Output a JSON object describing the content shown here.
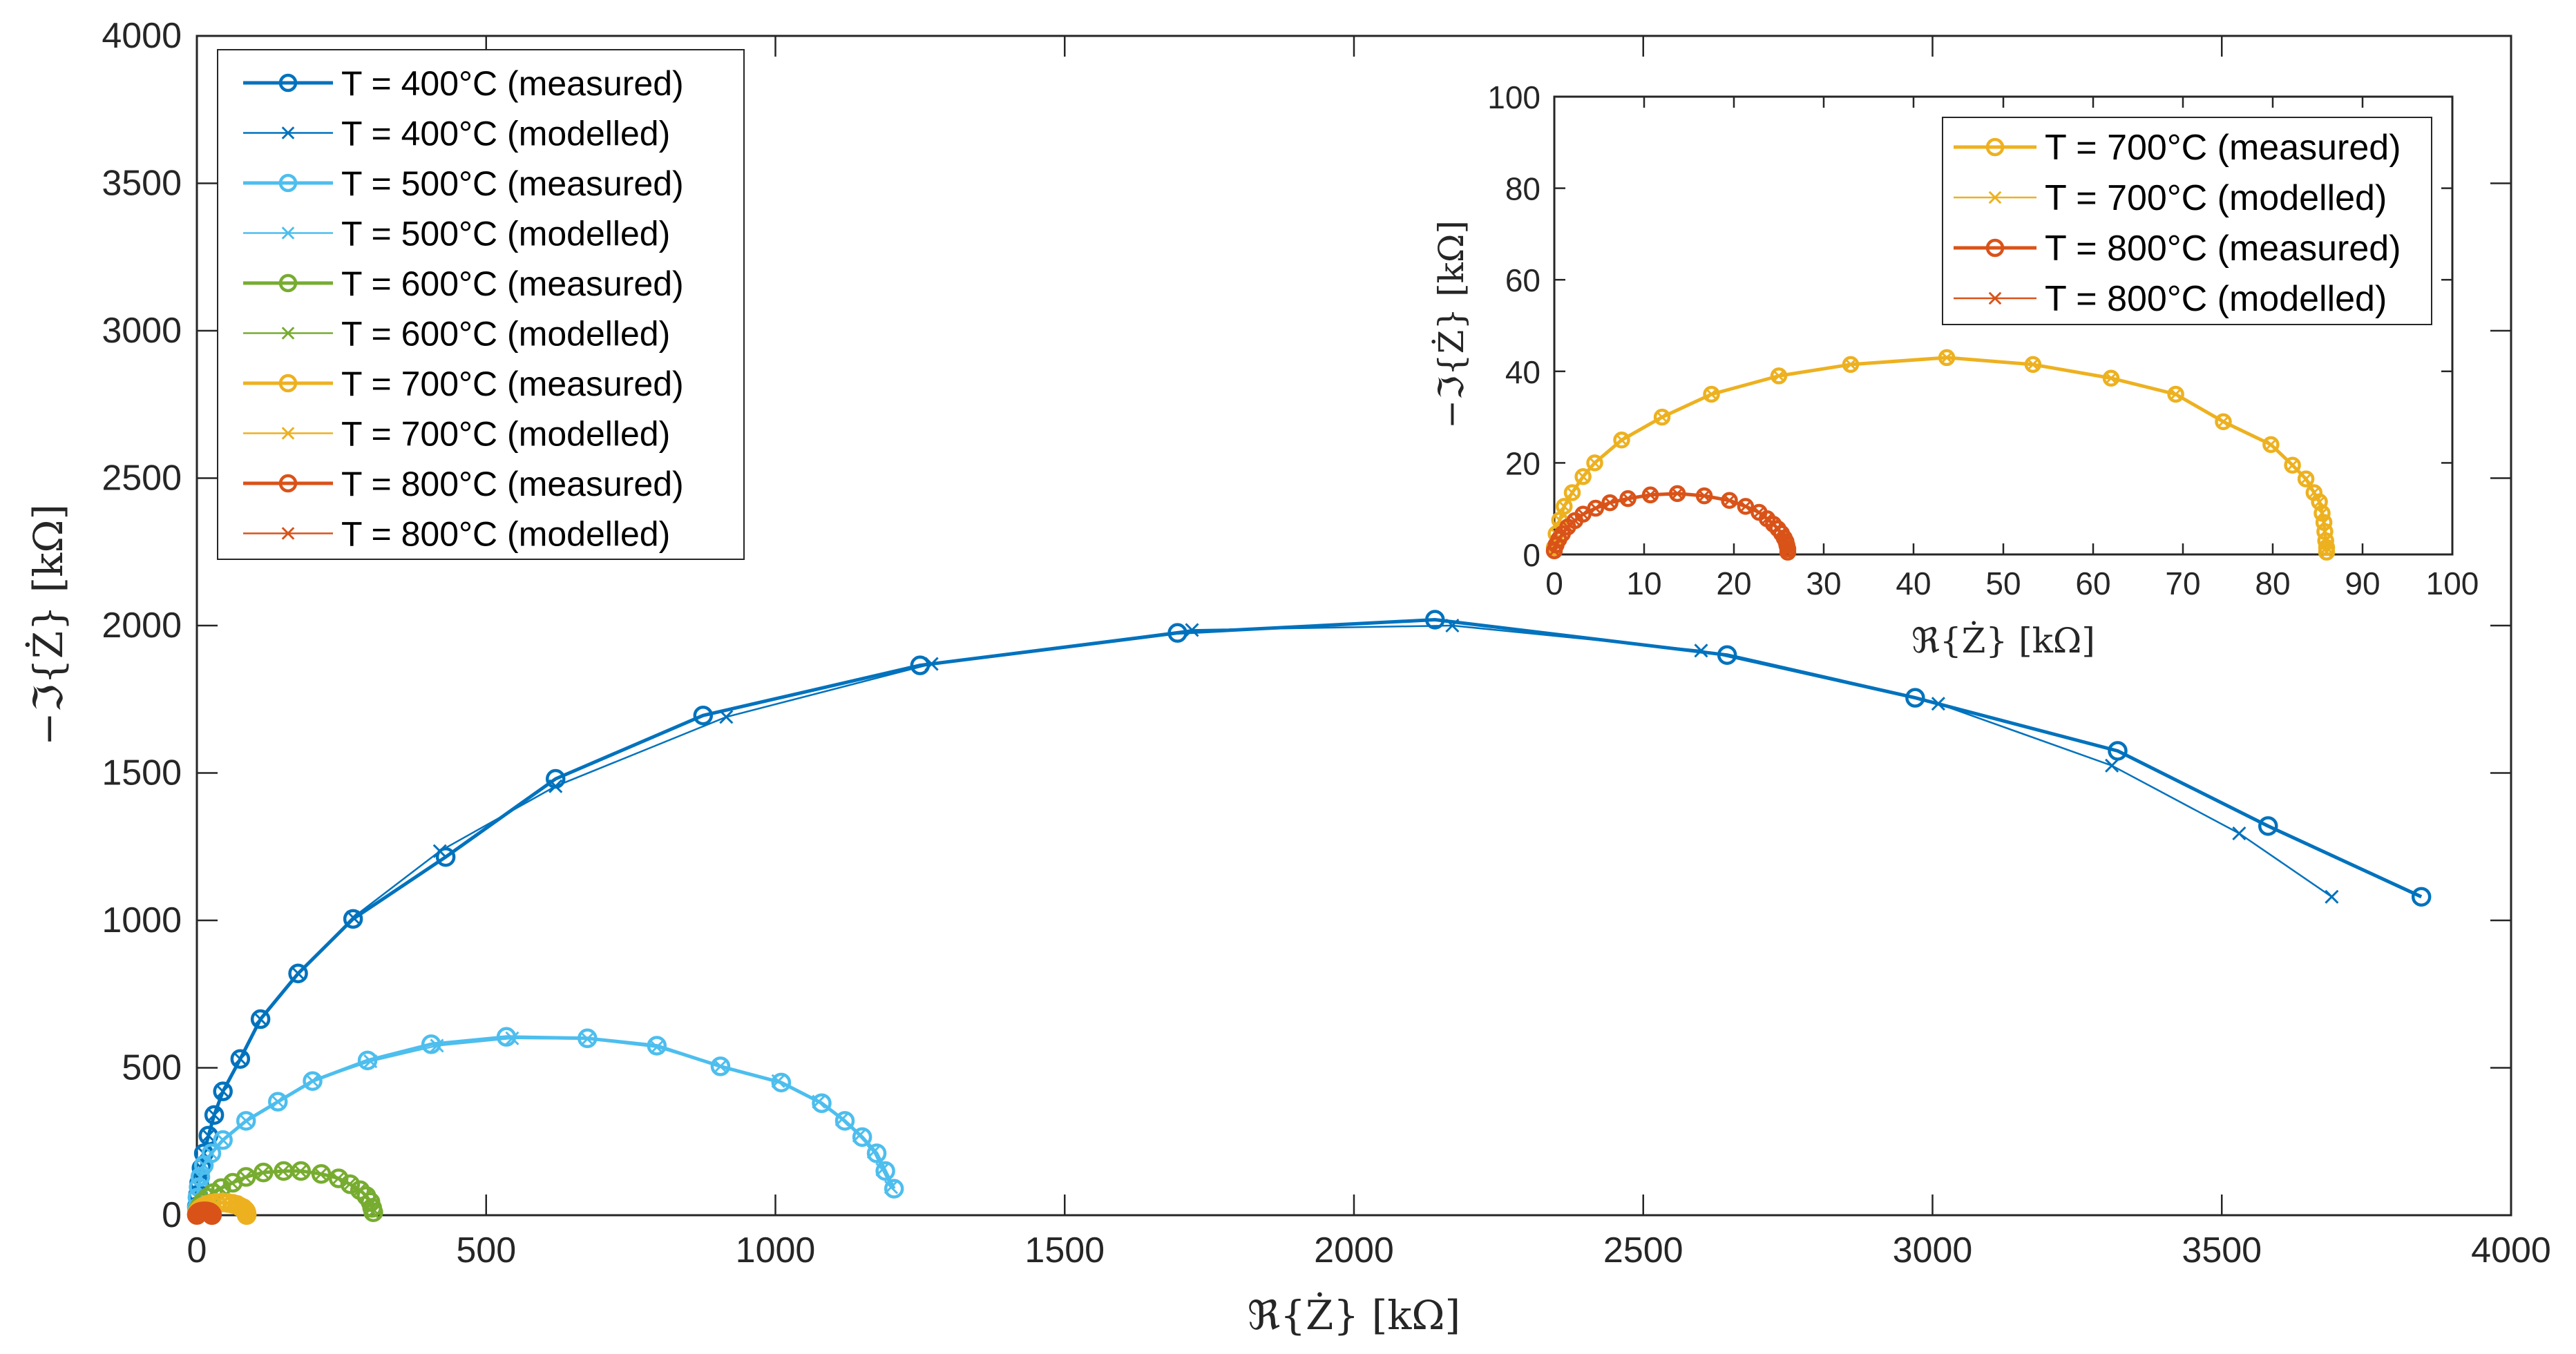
{
  "chart_data": [
    {
      "type": "line",
      "title": "",
      "xlabel": "ℜ{Ż} [kΩ]",
      "ylabel": "−ℑ{Ż} [kΩ]",
      "xlim": [
        0,
        4000
      ],
      "ylim": [
        0,
        4000
      ],
      "x_ticks": [
        "0",
        "500",
        "1000",
        "1500",
        "2000",
        "2500",
        "3000",
        "3500",
        "4000"
      ],
      "y_ticks": [
        "0",
        "500",
        "1000",
        "1500",
        "2000",
        "2500",
        "3000",
        "3500",
        "4000"
      ],
      "legend_position": "top-left",
      "series": [
        {
          "name": "T = 400°C (measured)",
          "color": "#0072BD",
          "marker": "circle",
          "style": "thick",
          "points": [
            [
              3845,
              1080
            ],
            [
              3580,
              1320
            ],
            [
              3320,
              1575
            ],
            [
              2970,
              1755
            ],
            [
              2645,
              1900
            ],
            [
              2140,
              2020
            ],
            [
              1695,
              1975
            ],
            [
              1250,
              1865
            ],
            [
              875,
              1695
            ],
            [
              620,
              1480
            ],
            [
              430,
              1215
            ],
            [
              270,
              1005
            ],
            [
              175,
              820
            ],
            [
              110,
              665
            ],
            [
              75,
              530
            ],
            [
              45,
              420
            ],
            [
              30,
              340
            ],
            [
              20,
              270
            ],
            [
              12,
              210
            ],
            [
              8,
              160
            ],
            [
              4,
              110
            ],
            [
              2,
              70
            ],
            [
              0,
              30
            ]
          ]
        },
        {
          "name": "T = 400°C (modelled)",
          "color": "#0072BD",
          "marker": "x",
          "style": "thin",
          "points": [
            [
              3690,
              1080
            ],
            [
              3530,
              1295
            ],
            [
              3310,
              1525
            ],
            [
              3010,
              1735
            ],
            [
              2600,
              1915
            ],
            [
              2170,
              2000
            ],
            [
              1720,
              1985
            ],
            [
              1270,
              1870
            ],
            [
              915,
              1690
            ],
            [
              620,
              1455
            ],
            [
              420,
              1235
            ],
            [
              270,
              1010
            ],
            [
              175,
              820
            ],
            [
              110,
              665
            ],
            [
              75,
              530
            ],
            [
              45,
              420
            ],
            [
              30,
              340
            ],
            [
              20,
              270
            ],
            [
              12,
              210
            ],
            [
              8,
              160
            ],
            [
              4,
              110
            ],
            [
              2,
              70
            ],
            [
              0,
              30
            ]
          ]
        },
        {
          "name": "T = 500°C (measured)",
          "color": "#4DBEEE",
          "marker": "circle",
          "style": "thick",
          "points": [
            [
              1205,
              90
            ],
            [
              1190,
              150
            ],
            [
              1175,
              210
            ],
            [
              1150,
              265
            ],
            [
              1120,
              320
            ],
            [
              1080,
              380
            ],
            [
              1010,
              450
            ],
            [
              905,
              505
            ],
            [
              795,
              575
            ],
            [
              675,
              600
            ],
            [
              535,
              605
            ],
            [
              405,
              580
            ],
            [
              295,
              525
            ],
            [
              200,
              455
            ],
            [
              140,
              385
            ],
            [
              85,
              320
            ],
            [
              45,
              255
            ],
            [
              25,
              210
            ],
            [
              12,
              170
            ],
            [
              6,
              130
            ],
            [
              3,
              95
            ],
            [
              1,
              60
            ],
            [
              0,
              25
            ]
          ]
        },
        {
          "name": "T = 500°C (modelled)",
          "color": "#4DBEEE",
          "marker": "x",
          "style": "thin",
          "points": [
            [
              1200,
              95
            ],
            [
              1185,
              155
            ],
            [
              1170,
              215
            ],
            [
              1145,
              270
            ],
            [
              1115,
              325
            ],
            [
              1075,
              385
            ],
            [
              1005,
              455
            ],
            [
              905,
              505
            ],
            [
              795,
              570
            ],
            [
              675,
              598
            ],
            [
              545,
              600
            ],
            [
              415,
              575
            ],
            [
              300,
              522
            ],
            [
              200,
              455
            ],
            [
              140,
              385
            ],
            [
              85,
              320
            ],
            [
              45,
              255
            ],
            [
              25,
              210
            ],
            [
              12,
              170
            ],
            [
              6,
              130
            ],
            [
              3,
              95
            ],
            [
              1,
              60
            ],
            [
              0,
              25
            ]
          ]
        },
        {
          "name": "T = 600°C (measured)",
          "color": "#77AC30",
          "marker": "circle",
          "style": "thick",
          "points": [
            [
              305,
              10
            ],
            [
              303,
              25
            ],
            [
              300,
              45
            ],
            [
              293,
              65
            ],
            [
              282,
              85
            ],
            [
              265,
              105
            ],
            [
              245,
              125
            ],
            [
              215,
              140
            ],
            [
              180,
              150
            ],
            [
              150,
              150
            ],
            [
              115,
              145
            ],
            [
              85,
              130
            ],
            [
              62,
              110
            ],
            [
              42,
              92
            ],
            [
              28,
              75
            ],
            [
              18,
              60
            ],
            [
              10,
              45
            ],
            [
              5,
              30
            ],
            [
              2,
              18
            ],
            [
              0,
              5
            ]
          ]
        },
        {
          "name": "T = 600°C (modelled)",
          "color": "#77AC30",
          "marker": "x",
          "style": "thin",
          "points": [
            [
              304,
              10
            ],
            [
              302,
              25
            ],
            [
              299,
              45
            ],
            [
              292,
              65
            ],
            [
              281,
              85
            ],
            [
              264,
              105
            ],
            [
              244,
              124
            ],
            [
              214,
              139
            ],
            [
              179,
              149
            ],
            [
              149,
              149
            ],
            [
              114,
              144
            ],
            [
              84,
              129
            ],
            [
              61,
              109
            ],
            [
              41,
              91
            ],
            [
              27,
              74
            ],
            [
              17,
              59
            ],
            [
              9,
              44
            ],
            [
              4,
              29
            ],
            [
              1,
              17
            ],
            [
              0,
              5
            ]
          ]
        },
        {
          "name": "T = 700°C (measured)",
          "color": "#EDB120",
          "marker": "circle",
          "style": "thick",
          "points": [
            [
              86.0,
              0.5
            ],
            [
              86.0,
              1.5
            ],
            [
              85.9,
              3
            ],
            [
              85.8,
              5
            ],
            [
              85.7,
              7
            ],
            [
              85.5,
              9
            ],
            [
              85.2,
              11.5
            ],
            [
              84.6,
              13.5
            ],
            [
              83.7,
              16.5
            ],
            [
              82.2,
              19.5
            ],
            [
              79.8,
              24
            ],
            [
              74.5,
              29
            ],
            [
              69.2,
              35
            ],
            [
              62.0,
              38.5
            ],
            [
              53.3,
              41.5
            ],
            [
              43.7,
              43
            ],
            [
              33.0,
              41.5
            ],
            [
              25.0,
              39
            ],
            [
              17.5,
              35
            ],
            [
              12.0,
              30
            ],
            [
              7.5,
              25
            ],
            [
              4.5,
              20
            ],
            [
              3.2,
              17
            ],
            [
              2.0,
              13.5
            ],
            [
              1.1,
              10.5
            ],
            [
              0.6,
              7.5
            ],
            [
              0.2,
              4.5
            ],
            [
              0,
              1.5
            ]
          ]
        },
        {
          "name": "T = 700°C (modelled)",
          "color": "#EDB120",
          "marker": "x",
          "style": "thin",
          "points": [
            [
              86.0,
              0.5
            ],
            [
              86.0,
              1.5
            ],
            [
              85.9,
              3
            ],
            [
              85.8,
              5
            ],
            [
              85.7,
              7
            ],
            [
              85.5,
              9
            ],
            [
              85.2,
              11.5
            ],
            [
              84.6,
              13.5
            ],
            [
              83.7,
              16.5
            ],
            [
              82.2,
              19.5
            ],
            [
              79.8,
              24
            ],
            [
              74.5,
              29
            ],
            [
              69.2,
              35
            ],
            [
              62.0,
              38.5
            ],
            [
              53.3,
              41.5
            ],
            [
              43.7,
              43
            ],
            [
              33.0,
              41.5
            ],
            [
              25.0,
              39
            ],
            [
              17.5,
              35
            ],
            [
              12.0,
              30
            ],
            [
              7.5,
              25
            ],
            [
              4.5,
              20
            ],
            [
              3.2,
              17
            ],
            [
              2.0,
              13.5
            ],
            [
              1.1,
              10.5
            ],
            [
              0.6,
              7.5
            ],
            [
              0.2,
              4.5
            ],
            [
              0,
              1.5
            ]
          ]
        },
        {
          "name": "T = 800°C (measured)",
          "color": "#D95319",
          "marker": "circle",
          "style": "thick",
          "points": [
            [
              26.0,
              0.5
            ],
            [
              26.0,
              1.2
            ],
            [
              25.9,
              2
            ],
            [
              25.8,
              2.8
            ],
            [
              25.6,
              3.6
            ],
            [
              25.3,
              4.6
            ],
            [
              24.9,
              5.6
            ],
            [
              24.4,
              6.6
            ],
            [
              23.7,
              7.8
            ],
            [
              22.8,
              9.2
            ],
            [
              21.3,
              10.5
            ],
            [
              19.5,
              11.8
            ],
            [
              16.7,
              12.8
            ],
            [
              13.7,
              13.3
            ],
            [
              10.7,
              13
            ],
            [
              8.2,
              12.2
            ],
            [
              6.2,
              11.3
            ],
            [
              4.6,
              10.1
            ],
            [
              3.2,
              8.8
            ],
            [
              2.3,
              7.4
            ],
            [
              1.5,
              6
            ],
            [
              0.9,
              4.5
            ],
            [
              0.5,
              3.3
            ],
            [
              0.2,
              2.1
            ],
            [
              0,
              0.8
            ]
          ]
        },
        {
          "name": "T = 800°C (modelled)",
          "color": "#D95319",
          "marker": "x",
          "style": "thin",
          "points": [
            [
              26.0,
              0.5
            ],
            [
              26.0,
              1.2
            ],
            [
              25.9,
              2
            ],
            [
              25.8,
              2.8
            ],
            [
              25.6,
              3.6
            ],
            [
              25.3,
              4.6
            ],
            [
              24.9,
              5.6
            ],
            [
              24.4,
              6.6
            ],
            [
              23.7,
              7.8
            ],
            [
              22.8,
              9.2
            ],
            [
              21.3,
              10.5
            ],
            [
              19.5,
              11.8
            ],
            [
              16.7,
              12.8
            ],
            [
              13.7,
              13.3
            ],
            [
              10.7,
              13
            ],
            [
              8.2,
              12.2
            ],
            [
              6.2,
              11.3
            ],
            [
              4.6,
              10.1
            ],
            [
              3.2,
              8.8
            ],
            [
              2.3,
              7.4
            ],
            [
              1.5,
              6
            ],
            [
              0.9,
              4.5
            ],
            [
              0.5,
              3.3
            ],
            [
              0.2,
              2.1
            ],
            [
              0,
              0.8
            ]
          ]
        }
      ]
    },
    {
      "type": "line",
      "title": "",
      "xlabel": "ℜ{Ż} [kΩ]",
      "ylabel": "−ℑ{Ż} [kΩ]",
      "xlim": [
        0,
        100
      ],
      "ylim": [
        0,
        100
      ],
      "x_ticks": [
        "0",
        "10",
        "20",
        "30",
        "40",
        "50",
        "60",
        "70",
        "80",
        "90",
        "100"
      ],
      "y_ticks": [
        "0",
        "20",
        "40",
        "60",
        "80",
        "100"
      ],
      "legend_position": "top-right",
      "series_refs": [
        "T = 700°C (measured)",
        "T = 700°C (modelled)",
        "T = 800°C (measured)",
        "T = 800°C (modelled)"
      ]
    }
  ]
}
